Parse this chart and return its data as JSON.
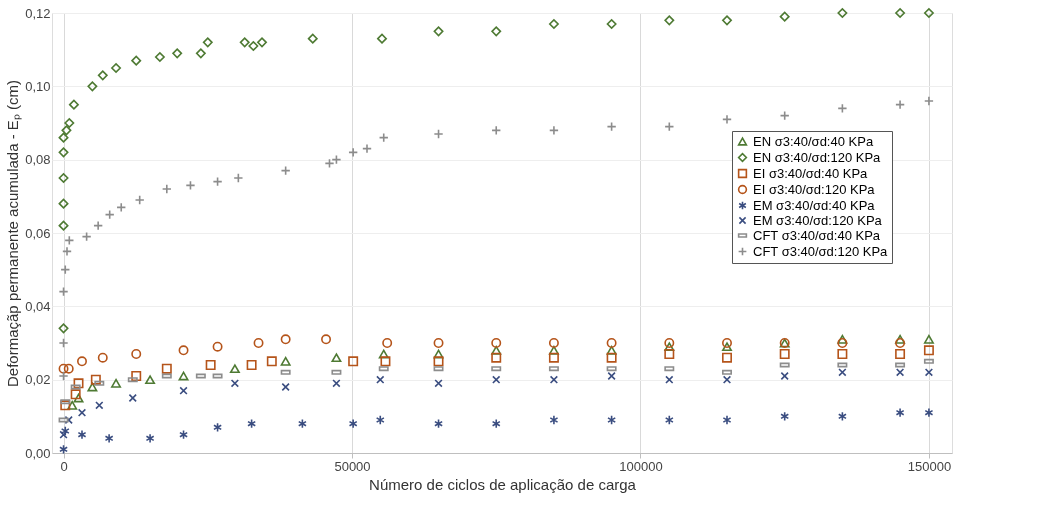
{
  "chart_data": {
    "type": "scatter",
    "xlabel": "Número de ciclos de aplicação de carga",
    "ylabel": "Deformaçãp permanente acumulada - Eₚ (cm)",
    "xlim": [
      -2000,
      154000
    ],
    "xticks": [
      0,
      50000,
      100000,
      150000
    ],
    "ylim": [
      0,
      0.12
    ],
    "yticks": [
      {
        "value": 0,
        "label": "0,00"
      },
      {
        "value": 0.02,
        "label": "0,02"
      },
      {
        "value": 0.04,
        "label": "0,04"
      },
      {
        "value": 0.06,
        "label": "0,06"
      },
      {
        "value": 0.08,
        "label": "0,08"
      },
      {
        "value": 0.1,
        "label": "0,10"
      },
      {
        "value": 0.12,
        "label": "0,12"
      }
    ],
    "grid": true,
    "legend": "right",
    "series": [
      {
        "name": "EN σ3:40/σd:40 KPa",
        "color": "#4e7a33",
        "marker": "triangle",
        "x": [
          1500,
          2600,
          5000,
          9100,
          15000,
          20800,
          29700,
          38500,
          47300,
          55500,
          65000,
          75000,
          85000,
          95000,
          105000,
          115000,
          125000,
          135000,
          145000,
          150000
        ],
        "values": [
          0.013,
          0.015,
          0.018,
          0.019,
          0.02,
          0.021,
          0.023,
          0.025,
          0.026,
          0.027,
          0.027,
          0.028,
          0.028,
          0.028,
          0.029,
          0.029,
          0.03,
          0.031,
          0.031,
          0.031
        ]
      },
      {
        "name": "EN σ3:40/σd:120 KPa",
        "color": "#4e7a33",
        "marker": "diamond",
        "x": [
          0,
          0,
          0,
          0,
          0,
          0,
          500,
          1000,
          1800,
          5000,
          6800,
          9100,
          12600,
          16700,
          19700,
          23800,
          25000,
          31400,
          32900,
          34400,
          43200,
          55200,
          65000,
          75000,
          85000,
          95000,
          105000,
          115000,
          125000,
          135000,
          145000,
          150000
        ],
        "values": [
          0.034,
          0.062,
          0.068,
          0.075,
          0.082,
          0.086,
          0.088,
          0.09,
          0.095,
          0.1,
          0.103,
          0.105,
          0.107,
          0.108,
          0.109,
          0.109,
          0.112,
          0.112,
          0.111,
          0.112,
          0.113,
          0.113,
          0.115,
          0.115,
          0.117,
          0.117,
          0.118,
          0.118,
          0.119,
          0.12,
          0.12,
          0.12
        ]
      },
      {
        "name": "EI σ3:40/σd:40 KPa",
        "color": "#b5541a",
        "marker": "square",
        "x": [
          300,
          2100,
          2600,
          5600,
          12600,
          17900,
          25500,
          32600,
          36100,
          50200,
          55800,
          65000,
          75000,
          85000,
          95000,
          105000,
          115000,
          125000,
          135000,
          145000,
          150000
        ],
        "values": [
          0.013,
          0.016,
          0.019,
          0.02,
          0.021,
          0.023,
          0.024,
          0.024,
          0.025,
          0.025,
          0.025,
          0.025,
          0.026,
          0.026,
          0.026,
          0.027,
          0.026,
          0.027,
          0.027,
          0.027,
          0.028
        ]
      },
      {
        "name": "EI σ3:40/σd:120 KPa",
        "color": "#b5541a",
        "marker": "circle",
        "x": [
          0,
          900,
          3200,
          6800,
          12600,
          20800,
          26700,
          33800,
          38500,
          45500,
          56100,
          65000,
          75000,
          85000,
          95000,
          105000,
          115000,
          125000,
          135000,
          145000
        ],
        "values": [
          0.023,
          0.023,
          0.025,
          0.026,
          0.027,
          0.028,
          0.029,
          0.03,
          0.031,
          0.031,
          0.03,
          0.03,
          0.03,
          0.03,
          0.03,
          0.03,
          0.03,
          0.03,
          0.03,
          0.03
        ]
      },
      {
        "name": "EM σ3:40/σd:40 KPa",
        "color": "#3a4d80",
        "marker": "cross",
        "x": [
          0,
          300,
          3200,
          7900,
          15000,
          20800,
          26700,
          32600,
          41400,
          50200,
          54900,
          65000,
          75000,
          85000,
          95000,
          105000,
          115000,
          125000,
          135000,
          145000,
          150000
        ],
        "values": [
          0.001,
          0.006,
          0.005,
          0.004,
          0.004,
          0.005,
          0.007,
          0.008,
          0.008,
          0.008,
          0.009,
          0.008,
          0.008,
          0.009,
          0.009,
          0.009,
          0.009,
          0.01,
          0.01,
          0.011,
          0.011
        ]
      },
      {
        "name": "EM σ3:40/σd:120 KPa",
        "color": "#3a4d80",
        "marker": "x",
        "x": [
          0,
          900,
          3200,
          6200,
          12000,
          20800,
          29700,
          38500,
          47300,
          54900,
          65000,
          75000,
          85000,
          95000,
          105000,
          115000,
          125000,
          135000,
          145000,
          150000
        ],
        "values": [
          0.005,
          0.009,
          0.011,
          0.013,
          0.015,
          0.017,
          0.019,
          0.018,
          0.019,
          0.02,
          0.019,
          0.02,
          0.02,
          0.021,
          0.02,
          0.02,
          0.021,
          0.022,
          0.022,
          0.022
        ]
      },
      {
        "name": "CFT σ3:40/σd:40 KPa",
        "color": "#8c8c8c",
        "x": [
          0,
          300,
          2100,
          6200,
          12000,
          17900,
          23800,
          26700,
          38500,
          47300,
          55500,
          65000,
          75000,
          85000,
          95000,
          105000,
          115000,
          125000,
          135000,
          145000,
          150000
        ],
        "values": [
          0.009,
          0.014,
          0.018,
          0.019,
          0.02,
          0.021,
          0.021,
          0.021,
          0.022,
          0.022,
          0.023,
          0.023,
          0.023,
          0.023,
          0.023,
          0.023,
          0.022,
          0.024,
          0.024,
          0.024,
          0.025
        ]
      },
      {
        "name": "CFT σ3:40/σd:120 KPa",
        "color": "#8c8c8c",
        "marker": "plus",
        "x": [
          0,
          0,
          0,
          300,
          600,
          1000,
          4000,
          6000,
          8000,
          10000,
          13200,
          17900,
          22000,
          26700,
          30300,
          38500,
          46100,
          47300,
          50200,
          52600,
          55500,
          65000,
          75000,
          85000,
          95000,
          105000,
          115000,
          125000,
          135000,
          145000,
          150000
        ],
        "values": [
          0.021,
          0.03,
          0.044,
          0.05,
          0.055,
          0.058,
          0.059,
          0.062,
          0.065,
          0.067,
          0.069,
          0.072,
          0.073,
          0.074,
          0.075,
          0.077,
          0.079,
          0.08,
          0.082,
          0.083,
          0.086,
          0.087,
          0.088,
          0.088,
          0.089,
          0.089,
          0.091,
          0.092,
          0.094,
          0.095,
          0.096
        ]
      }
    ]
  }
}
